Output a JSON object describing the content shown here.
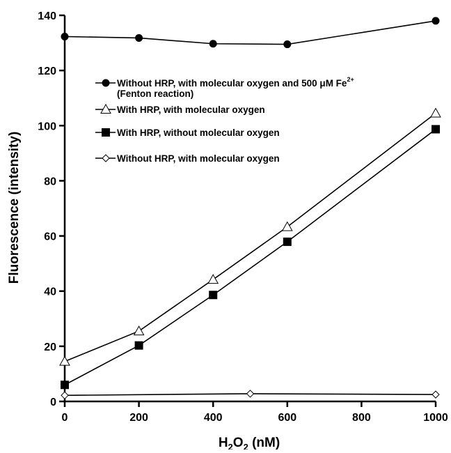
{
  "chart_data": {
    "type": "line",
    "xlabel": "H2O2 (nM)",
    "xlabel_parts": {
      "base1": "H",
      "sub1": "2",
      "base2": "O",
      "sub2": "2",
      "rest": " (nM)"
    },
    "ylabel": "Fluorescence (intensity)",
    "xlim": [
      0,
      1000
    ],
    "ylim": [
      0,
      140
    ],
    "xticks": [
      0,
      200,
      400,
      600,
      800,
      1000
    ],
    "yticks": [
      0,
      20,
      40,
      60,
      80,
      100,
      120,
      140
    ],
    "grid": false,
    "legend_position": "upper-left inside plot",
    "series": [
      {
        "name": "Without HRP, with molecular oxygen and 500 µM Fe2+ (Fenton reaction)",
        "legend_lines": [
          "Without HRP, with molecular oxygen and 500 μM Fe",
          "(Fenton reaction)"
        ],
        "legend_superscript": "2+",
        "marker": "filled-circle",
        "x": [
          0,
          200,
          400,
          600,
          1000
        ],
        "y": [
          132.3,
          131.8,
          129.7,
          129.5,
          138
        ]
      },
      {
        "name": "With HRP, with molecular oxygen",
        "legend_lines": [
          "With HRP, with molecular oxygen"
        ],
        "marker": "open-triangle",
        "x": [
          0,
          200,
          400,
          600,
          1000
        ],
        "y": [
          14.5,
          25.5,
          44.2,
          63.3,
          104.5
        ]
      },
      {
        "name": "With HRP, without molecular oxygen",
        "legend_lines": [
          "With HRP, without molecular oxygen"
        ],
        "marker": "filled-square",
        "x": [
          0,
          200,
          400,
          600,
          1000
        ],
        "y": [
          6,
          20.3,
          38.6,
          57.9,
          98.7
        ]
      },
      {
        "name": "Without HRP, with molecular oxygen",
        "legend_lines": [
          "Without HRP, with molecular oxygen"
        ],
        "marker": "open-diamond",
        "x": [
          0,
          500,
          1000
        ],
        "y": [
          2.2,
          2.8,
          2.5
        ]
      }
    ]
  }
}
